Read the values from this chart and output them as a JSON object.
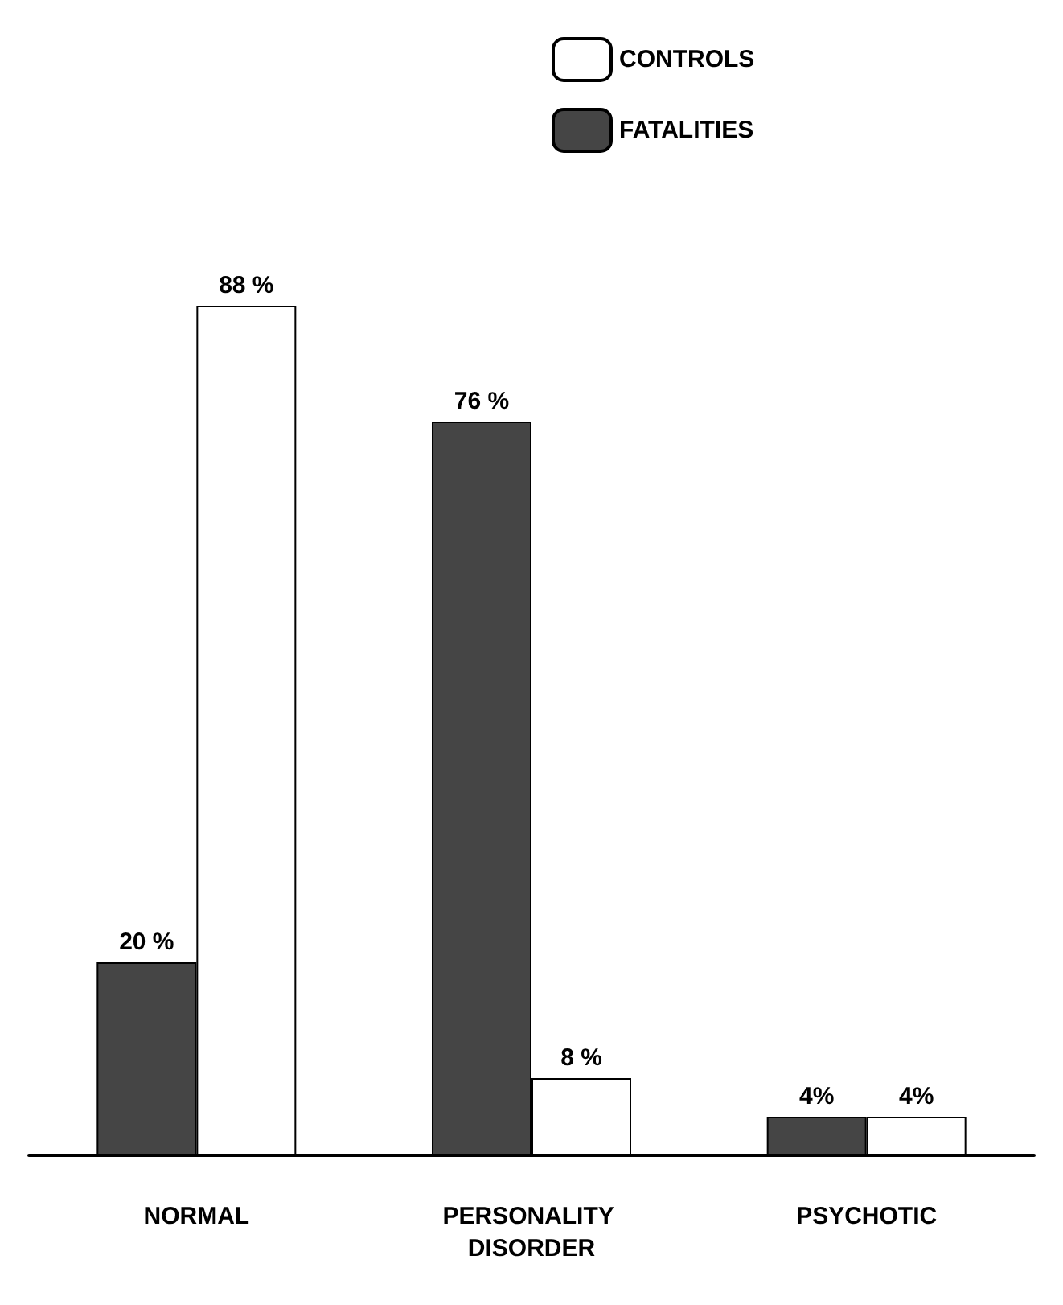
{
  "chart_data": {
    "type": "bar",
    "categories": [
      "NORMAL",
      "PERSONALITY DISORDER",
      "PSYCHOTIC"
    ],
    "series": [
      {
        "name": "FATALITIES",
        "color": "#454545",
        "values": [
          20,
          76,
          4
        ],
        "value_labels": [
          "20 %",
          "76 %",
          "4%"
        ]
      },
      {
        "name": "CONTROLS",
        "color": "#ffffff",
        "values": [
          88,
          8,
          4
        ],
        "value_labels": [
          "88 %",
          "8 %",
          "4%"
        ]
      }
    ],
    "legend": "top",
    "grid": false
  }
}
